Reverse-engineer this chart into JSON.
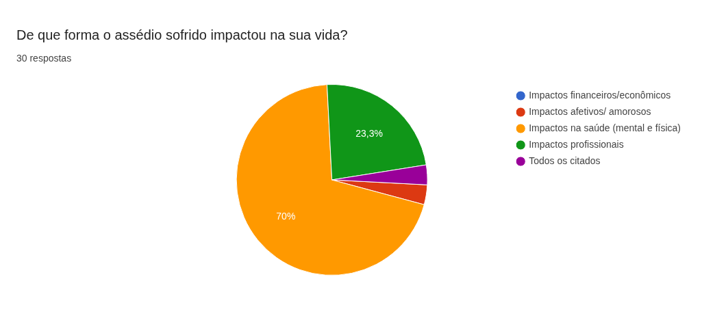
{
  "chart_data": {
    "type": "pie",
    "title": "De que forma o assédio sofrido impactou na sua vida?",
    "subtitle": "30 respostas",
    "categories": [
      "Impactos financeiros/econômicos",
      "Impactos afetivos/ amorosos",
      "Impactos na saúde (mental e física)",
      "Impactos profissionais",
      "Todos os citados"
    ],
    "values": [
      0,
      3.35,
      70,
      23.3,
      3.35
    ],
    "colors": [
      "#3366cc",
      "#dc3912",
      "#ff9900",
      "#109618",
      "#990099"
    ],
    "value_labels": [
      null,
      null,
      "70%",
      "23,3%",
      null
    ],
    "legend": "right"
  }
}
